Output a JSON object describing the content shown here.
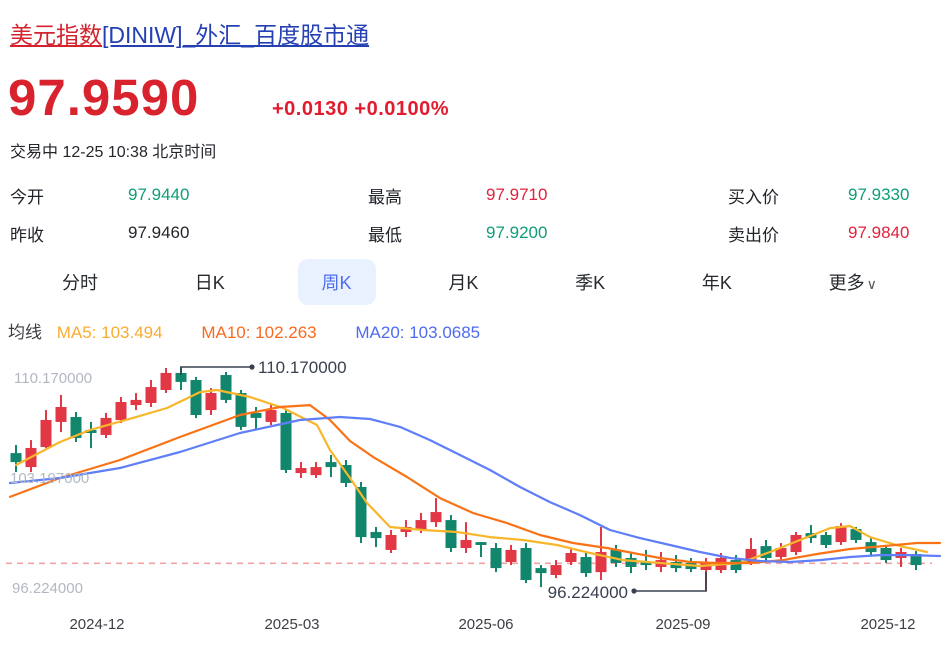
{
  "header": {
    "title_red": "美元指数",
    "title_blue": "[DINIW]_外汇_百度股市通",
    "price": "97.9590",
    "change": "+0.0130",
    "change_pct": "+0.0100%",
    "status_line": "交易中 12-25 10:38 北京时间"
  },
  "quote": {
    "rows": [
      {
        "cells": [
          {
            "label": "今开",
            "value": "97.9440",
            "color": "green"
          },
          {
            "label": "最高",
            "value": "97.9710",
            "color": "red"
          },
          {
            "label": "买入价",
            "value": "97.9330",
            "color": "green"
          }
        ]
      },
      {
        "cells": [
          {
            "label": "昨收",
            "value": "97.9460",
            "color": "dark"
          },
          {
            "label": "最低",
            "value": "97.9200",
            "color": "green"
          },
          {
            "label": "卖出价",
            "value": "97.9840",
            "color": "red"
          }
        ]
      }
    ]
  },
  "tabs": {
    "items": [
      {
        "label": "分时",
        "selected": false
      },
      {
        "label": "日K",
        "selected": false
      },
      {
        "label": "周K",
        "selected": true
      },
      {
        "label": "月K",
        "selected": false
      },
      {
        "label": "季K",
        "selected": false
      },
      {
        "label": "年K",
        "selected": false
      },
      {
        "label": "更多",
        "selected": false,
        "chevron": "∨"
      }
    ]
  },
  "ma_legend": {
    "label": "均线",
    "ma5": "MA5: 103.494",
    "ma10": "MA10: 102.263",
    "ma20": "MA20: 103.0685"
  },
  "colors": {
    "title_red": "#d4232e",
    "title_blue": "#2440b3",
    "price_red": "#d8232e",
    "value_green": "#0f9d7a",
    "value_red": "#e1233d",
    "tab_selected_text": "#4e6ef2",
    "tab_selected_bg": "#e9f1ff",
    "candle_up": "#e23744",
    "candle_down": "#12866c",
    "ma5_line": "#f8b62a",
    "ma10_line": "#f97316",
    "ma20_line": "#5f7ef7",
    "prev_close_dash": "#f2a2a2",
    "axis_gray": "#b2b8c2",
    "annotation": "#394150"
  },
  "chart_data": {
    "type": "candlestick",
    "period": "weekly",
    "y_axis_labels": [
      "110.170000",
      "103.197000",
      "96.224000"
    ],
    "x_axis_labels": [
      "2024-12",
      "2025-03",
      "2025-06",
      "2025-09",
      "2025-12"
    ],
    "price_max": 110.17,
    "price_min": 96.224,
    "prev_close": 97.946,
    "high_annotation": "110.170000",
    "low_annotation": "96.224000",
    "high_candle_index": 11,
    "low_candle_index": 46,
    "ohlc_format": [
      "open",
      "close",
      "high",
      "low"
    ],
    "candles": [
      [
        104.81,
        104.25,
        105.31,
        103.63
      ],
      [
        103.94,
        105.13,
        105.62,
        103.63
      ],
      [
        105.19,
        106.87,
        107.49,
        105.12
      ],
      [
        106.75,
        107.68,
        108.43,
        106.12
      ],
      [
        107.06,
        105.75,
        107.37,
        105.5
      ],
      [
        106.25,
        106.06,
        106.75,
        105.12
      ],
      [
        105.94,
        107.0,
        107.31,
        105.75
      ],
      [
        106.87,
        107.99,
        108.3,
        106.68
      ],
      [
        107.8,
        108.12,
        108.55,
        107.49
      ],
      [
        107.93,
        108.92,
        109.36,
        107.68
      ],
      [
        108.74,
        109.8,
        110.11,
        108.55
      ],
      [
        109.8,
        109.24,
        110.17,
        108.74
      ],
      [
        109.36,
        107.18,
        109.55,
        106.99
      ],
      [
        107.49,
        108.55,
        108.86,
        107.18
      ],
      [
        109.67,
        108.12,
        109.86,
        107.93
      ],
      [
        108.55,
        106.44,
        108.74,
        106.25
      ],
      [
        107.31,
        107.0,
        107.68,
        106.25
      ],
      [
        106.75,
        107.49,
        107.8,
        106.56
      ],
      [
        107.31,
        103.76,
        107.49,
        103.57
      ],
      [
        103.57,
        103.88,
        104.25,
        103.26
      ],
      [
        103.44,
        103.94,
        104.25,
        103.26
      ],
      [
        104.25,
        103.94,
        104.69,
        103.32
      ],
      [
        104.07,
        102.95,
        104.38,
        102.7
      ],
      [
        102.7,
        99.58,
        103.01,
        99.21
      ],
      [
        99.9,
        99.52,
        100.21,
        98.96
      ],
      [
        98.78,
        99.71,
        100.02,
        98.59
      ],
      [
        99.9,
        100.21,
        100.64,
        99.58
      ],
      [
        100.02,
        100.64,
        101.08,
        99.83
      ],
      [
        100.51,
        101.14,
        102.01,
        100.21
      ],
      [
        100.64,
        98.9,
        100.95,
        98.65
      ],
      [
        98.9,
        99.4,
        100.51,
        98.59
      ],
      [
        99.27,
        99.09,
        99.27,
        98.34
      ],
      [
        98.9,
        97.65,
        99.21,
        97.4
      ],
      [
        98.03,
        98.78,
        99.09,
        97.84
      ],
      [
        98.9,
        96.91,
        99.21,
        96.72
      ],
      [
        97.65,
        97.34,
        97.84,
        96.47
      ],
      [
        97.22,
        97.84,
        98.15,
        97.03
      ],
      [
        98.03,
        98.59,
        98.9,
        97.84
      ],
      [
        98.34,
        97.34,
        98.71,
        97.1
      ],
      [
        97.4,
        98.65,
        100.21,
        96.91
      ],
      [
        98.78,
        97.97,
        99.09,
        97.72
      ],
      [
        98.28,
        97.72,
        98.59,
        97.34
      ],
      [
        98.03,
        97.84,
        98.78,
        97.53
      ],
      [
        97.72,
        98.15,
        98.65,
        97.4
      ],
      [
        98.03,
        97.65,
        98.46,
        97.4
      ],
      [
        97.97,
        97.59,
        98.28,
        97.4
      ],
      [
        97.53,
        97.97,
        98.28,
        96.22
      ],
      [
        97.53,
        98.28,
        98.59,
        97.34
      ],
      [
        98.15,
        97.53,
        98.46,
        97.34
      ],
      [
        97.97,
        98.84,
        99.52,
        97.84
      ],
      [
        99.02,
        98.28,
        99.4,
        98.03
      ],
      [
        98.34,
        98.9,
        99.21,
        98.15
      ],
      [
        98.65,
        99.71,
        99.9,
        98.46
      ],
      [
        99.83,
        99.52,
        100.33,
        99.21
      ],
      [
        99.71,
        99.09,
        99.9,
        98.9
      ],
      [
        99.27,
        100.27,
        100.45,
        99.09
      ],
      [
        100.08,
        99.4,
        100.21,
        99.21
      ],
      [
        99.27,
        98.65,
        99.58,
        98.46
      ],
      [
        98.9,
        98.15,
        99.09,
        97.97
      ],
      [
        98.28,
        98.65,
        98.9,
        97.72
      ],
      [
        98.53,
        97.84,
        98.71,
        97.53
      ]
    ],
    "ma5": [
      [
        16,
        104.07
      ],
      [
        60,
        105.5
      ],
      [
        90,
        106.25
      ],
      [
        133,
        107.0
      ],
      [
        167,
        107.62
      ],
      [
        200,
        108.61
      ],
      [
        217,
        108.74
      ],
      [
        250,
        108.3
      ],
      [
        283,
        107.62
      ],
      [
        317,
        106.56
      ],
      [
        330,
        105.0
      ],
      [
        350,
        103.26
      ],
      [
        367,
        101.7
      ],
      [
        390,
        100.21
      ],
      [
        423,
        100.02
      ],
      [
        457,
        99.9
      ],
      [
        490,
        99.58
      ],
      [
        523,
        99.4
      ],
      [
        557,
        99.09
      ],
      [
        590,
        98.59
      ],
      [
        623,
        98.15
      ],
      [
        660,
        97.97
      ],
      [
        700,
        97.78
      ],
      [
        740,
        97.97
      ],
      [
        770,
        98.65
      ],
      [
        800,
        99.4
      ],
      [
        830,
        100.14
      ],
      [
        850,
        100.27
      ],
      [
        870,
        99.58
      ],
      [
        900,
        99.02
      ],
      [
        927,
        98.65
      ]
    ],
    "ma10": [
      [
        10,
        102.08
      ],
      [
        60,
        103.26
      ],
      [
        120,
        104.38
      ],
      [
        180,
        105.81
      ],
      [
        240,
        107.18
      ],
      [
        280,
        107.68
      ],
      [
        310,
        107.8
      ],
      [
        330,
        106.87
      ],
      [
        350,
        105.56
      ],
      [
        373,
        104.57
      ],
      [
        407,
        103.32
      ],
      [
        440,
        102.01
      ],
      [
        473,
        101.08
      ],
      [
        507,
        100.45
      ],
      [
        540,
        99.71
      ],
      [
        573,
        99.21
      ],
      [
        607,
        98.9
      ],
      [
        633,
        98.59
      ],
      [
        660,
        98.28
      ],
      [
        690,
        98.03
      ],
      [
        717,
        97.97
      ],
      [
        750,
        97.97
      ],
      [
        783,
        98.15
      ],
      [
        817,
        98.53
      ],
      [
        850,
        98.84
      ],
      [
        883,
        99.02
      ],
      [
        917,
        99.21
      ],
      [
        940,
        99.21
      ]
    ],
    "ma20": [
      [
        10,
        102.95
      ],
      [
        60,
        103.26
      ],
      [
        120,
        103.88
      ],
      [
        180,
        104.88
      ],
      [
        240,
        106.06
      ],
      [
        300,
        106.87
      ],
      [
        340,
        107.06
      ],
      [
        370,
        106.93
      ],
      [
        400,
        106.44
      ],
      [
        430,
        105.62
      ],
      [
        460,
        104.69
      ],
      [
        490,
        103.76
      ],
      [
        520,
        102.7
      ],
      [
        550,
        101.76
      ],
      [
        580,
        100.95
      ],
      [
        610,
        100.02
      ],
      [
        640,
        99.52
      ],
      [
        670,
        99.09
      ],
      [
        700,
        98.65
      ],
      [
        730,
        98.28
      ],
      [
        760,
        98.09
      ],
      [
        790,
        98.03
      ],
      [
        820,
        98.15
      ],
      [
        850,
        98.34
      ],
      [
        880,
        98.46
      ],
      [
        910,
        98.46
      ],
      [
        940,
        98.4
      ]
    ]
  }
}
